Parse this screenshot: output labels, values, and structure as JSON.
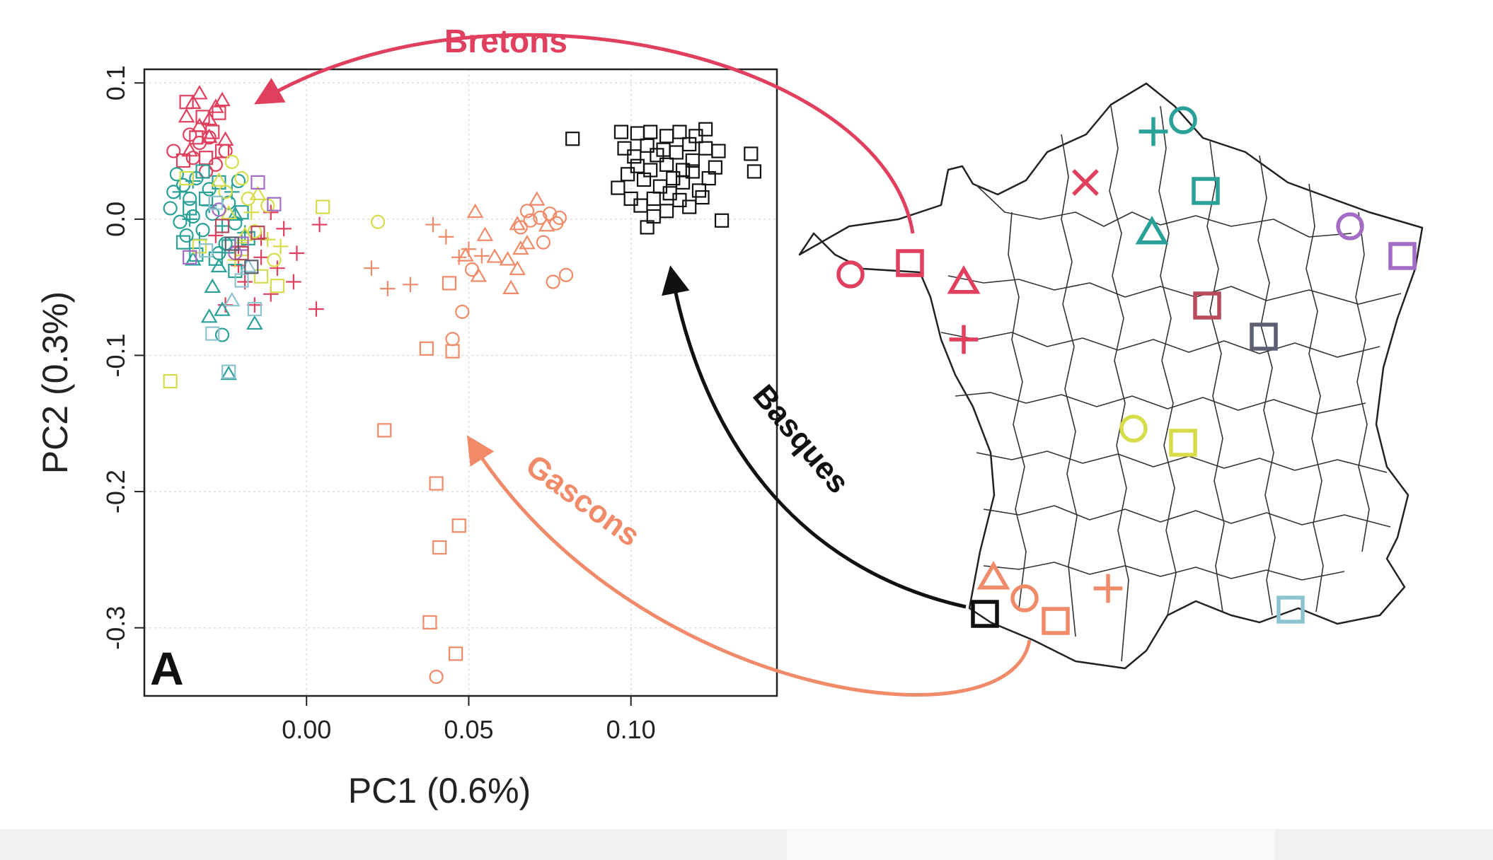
{
  "colors": {
    "red": "#e0405e",
    "teal": "#2aa198",
    "yellow": "#d7dc4a",
    "purple": "#a26cc4",
    "orange": "#f08a68",
    "black": "#111111",
    "maroon": "#b84a5c",
    "slate": "#5a6070",
    "lightblue": "#8cc3cf"
  },
  "chart_data": {
    "type": "scatter",
    "panel_label": "A",
    "xlabel": "PC1 (0.6%)",
    "ylabel": "PC2 (0.3%)",
    "xlim": [
      -0.05,
      0.145
    ],
    "ylim": [
      -0.35,
      0.11
    ],
    "x_ticks": [
      0.0,
      0.05,
      0.1
    ],
    "x_tick_labels": [
      "0.00",
      "0.05",
      "0.10"
    ],
    "y_ticks": [
      0.1,
      0.0,
      -0.1,
      -0.2,
      -0.3
    ],
    "y_tick_labels": [
      "0.1",
      "0.0",
      "-0.1",
      "-0.2",
      "-0.3"
    ],
    "grid": true,
    "annotations": [
      "Bretons",
      "Basques",
      "Gascons"
    ],
    "series": [
      {
        "group": "basque-cluster",
        "color": "black",
        "marker": "square",
        "points": [
          [
            0.082,
            0.059
          ],
          [
            0.097,
            0.064
          ],
          [
            0.102,
            0.063
          ],
          [
            0.106,
            0.064
          ],
          [
            0.111,
            0.061
          ],
          [
            0.115,
            0.064
          ],
          [
            0.12,
            0.061
          ],
          [
            0.123,
            0.066
          ],
          [
            0.098,
            0.052
          ],
          [
            0.101,
            0.046
          ],
          [
            0.105,
            0.054
          ],
          [
            0.11,
            0.051
          ],
          [
            0.114,
            0.049
          ],
          [
            0.118,
            0.055
          ],
          [
            0.123,
            0.052
          ],
          [
            0.127,
            0.05
          ],
          [
            0.137,
            0.048
          ],
          [
            0.138,
            0.035
          ],
          [
            0.096,
            0.023
          ],
          [
            0.099,
            0.033
          ],
          [
            0.102,
            0.039
          ],
          [
            0.104,
            0.029
          ],
          [
            0.106,
            0.036
          ],
          [
            0.109,
            0.024
          ],
          [
            0.111,
            0.04
          ],
          [
            0.113,
            0.03
          ],
          [
            0.116,
            0.027
          ],
          [
            0.119,
            0.035
          ],
          [
            0.121,
            0.021
          ],
          [
            0.124,
            0.03
          ],
          [
            0.126,
            0.038
          ],
          [
            0.1,
            0.015
          ],
          [
            0.103,
            0.01
          ],
          [
            0.107,
            0.015
          ],
          [
            0.111,
            0.006
          ],
          [
            0.115,
            0.014
          ],
          [
            0.118,
            0.009
          ],
          [
            0.122,
            0.016
          ],
          [
            0.128,
            -0.001
          ],
          [
            0.107,
            0.002
          ],
          [
            0.112,
            0.019
          ],
          [
            0.119,
            0.043
          ],
          [
            0.105,
            -0.006
          ],
          [
            0.116,
            0.036
          ],
          [
            0.108,
            0.047
          ]
        ]
      },
      {
        "group": "gascon-cluster",
        "color": "orange",
        "marker": "triangle",
        "points": [
          [
            0.052,
            0.005
          ],
          [
            0.055,
            -0.012
          ],
          [
            0.058,
            -0.028
          ],
          [
            0.062,
            -0.03
          ],
          [
            0.066,
            -0.022
          ],
          [
            0.068,
            -0.018
          ],
          [
            0.071,
            0.014
          ],
          [
            0.053,
            -0.042
          ],
          [
            0.063,
            -0.051
          ],
          [
            0.065,
            -0.037
          ],
          [
            0.074,
            -0.005
          ],
          [
            0.065,
            -0.004
          ],
          [
            0.049,
            -0.027
          ]
        ]
      },
      {
        "group": "gascon-cluster",
        "color": "orange",
        "marker": "circle",
        "points": [
          [
            0.066,
            -0.006
          ],
          [
            0.068,
            0.006
          ],
          [
            0.069,
            -0.001
          ],
          [
            0.072,
            0.001
          ],
          [
            0.073,
            -0.017
          ],
          [
            0.075,
            0.004
          ],
          [
            0.077,
            -0.003
          ],
          [
            0.078,
            0.001
          ],
          [
            0.076,
            -0.046
          ],
          [
            0.08,
            -0.041
          ],
          [
            0.051,
            -0.037
          ],
          [
            0.048,
            -0.068
          ],
          [
            0.045,
            -0.088
          ],
          [
            0.04,
            -0.336
          ]
        ]
      },
      {
        "group": "gascon-cluster",
        "color": "orange",
        "marker": "plus",
        "points": [
          [
            0.02,
            -0.036
          ],
          [
            0.025,
            -0.051
          ],
          [
            0.039,
            -0.004
          ],
          [
            0.047,
            -0.028
          ],
          [
            0.05,
            -0.022
          ],
          [
            0.054,
            -0.027
          ],
          [
            0.032,
            -0.048
          ],
          [
            0.043,
            -0.013
          ]
        ]
      },
      {
        "group": "gascon-cluster",
        "color": "orange",
        "marker": "square",
        "points": [
          [
            0.037,
            -0.095
          ],
          [
            0.044,
            -0.047
          ],
          [
            0.045,
            -0.097
          ],
          [
            0.024,
            -0.155
          ],
          [
            0.04,
            -0.194
          ],
          [
            0.047,
            -0.225
          ],
          [
            0.041,
            -0.241
          ],
          [
            0.038,
            -0.296
          ],
          [
            0.046,
            -0.319
          ]
        ]
      },
      {
        "group": "northern-cluster",
        "color": "red",
        "marker": "triangle",
        "points": [
          [
            -0.033,
            0.092
          ],
          [
            -0.028,
            0.082
          ],
          [
            -0.035,
            0.085
          ],
          [
            -0.03,
            0.073
          ],
          [
            -0.026,
            0.087
          ],
          [
            -0.037,
            0.075
          ],
          [
            -0.033,
            0.068
          ],
          [
            -0.025,
            0.058
          ],
          [
            -0.03,
            0.06
          ],
          [
            -0.036,
            0.05
          ]
        ]
      },
      {
        "group": "northern-cluster",
        "color": "red",
        "marker": "square",
        "points": [
          [
            -0.037,
            0.086
          ],
          [
            -0.027,
            0.078
          ],
          [
            -0.032,
            0.075
          ],
          [
            -0.029,
            0.064
          ],
          [
            -0.034,
            0.06
          ],
          [
            -0.026,
            0.05
          ],
          [
            -0.031,
            0.045
          ],
          [
            -0.038,
            0.043
          ]
        ]
      },
      {
        "group": "northern-cluster",
        "color": "red",
        "marker": "circle",
        "points": [
          [
            -0.041,
            0.05
          ],
          [
            -0.036,
            0.062
          ],
          [
            -0.033,
            0.056
          ],
          [
            -0.028,
            0.04
          ],
          [
            -0.031,
            0.035
          ],
          [
            -0.025,
            0.05
          ],
          [
            -0.03,
            0.06
          ],
          [
            -0.035,
            0.045
          ]
        ]
      },
      {
        "group": "northern-cluster",
        "color": "red",
        "marker": "plus",
        "points": [
          [
            -0.028,
            -0.012
          ],
          [
            -0.021,
            -0.02
          ],
          [
            -0.014,
            -0.014
          ],
          [
            -0.011,
            0.005
          ],
          [
            -0.007,
            -0.007
          ],
          [
            -0.019,
            -0.046
          ],
          [
            -0.016,
            -0.063
          ],
          [
            -0.011,
            -0.055
          ],
          [
            -0.004,
            -0.046
          ],
          [
            -0.003,
            -0.025
          ],
          [
            0.004,
            -0.004
          ],
          [
            0.003,
            -0.066
          ],
          [
            -0.025,
            -0.063
          ],
          [
            -0.009,
            -0.036
          ],
          [
            -0.021,
            -0.034
          ],
          [
            -0.014,
            -0.028
          ]
        ]
      },
      {
        "group": "northern-cluster",
        "color": "teal",
        "marker": "circle",
        "points": [
          [
            -0.042,
            0.008
          ],
          [
            -0.04,
            0.033
          ],
          [
            -0.041,
            0.02
          ],
          [
            -0.039,
            -0.002
          ],
          [
            -0.037,
            -0.012
          ],
          [
            -0.036,
            0.015
          ],
          [
            -0.034,
            0.03
          ],
          [
            -0.032,
            -0.008
          ],
          [
            -0.03,
            0.022
          ],
          [
            -0.029,
            0.004
          ],
          [
            -0.027,
            -0.025
          ],
          [
            -0.025,
            -0.018
          ],
          [
            -0.024,
            0.012
          ],
          [
            -0.022,
            -0.003
          ],
          [
            -0.026,
            -0.085
          ],
          [
            -0.021,
            0.028
          ],
          [
            -0.035,
            0.002
          ],
          [
            -0.038,
            0.025
          ]
        ]
      },
      {
        "group": "northern-cluster",
        "color": "teal",
        "marker": "square",
        "points": [
          [
            -0.038,
            -0.017
          ],
          [
            -0.034,
            -0.026
          ],
          [
            -0.031,
            0.015
          ],
          [
            -0.028,
            -0.029
          ],
          [
            -0.024,
            -0.02
          ],
          [
            -0.02,
            0.005
          ],
          [
            -0.018,
            -0.014
          ],
          [
            -0.032,
            0.035
          ],
          [
            -0.027,
            0.027
          ],
          [
            -0.022,
            -0.038
          ],
          [
            -0.036,
            0.008
          ]
        ]
      },
      {
        "group": "northern-cluster",
        "color": "teal",
        "marker": "triangle",
        "points": [
          [
            -0.029,
            -0.05
          ],
          [
            -0.026,
            -0.067
          ],
          [
            -0.03,
            -0.072
          ],
          [
            -0.024,
            -0.114
          ],
          [
            -0.016,
            -0.077
          ],
          [
            -0.027,
            -0.035
          ],
          [
            -0.022,
            0.003
          ],
          [
            -0.035,
            -0.03
          ]
        ]
      },
      {
        "group": "northern-cluster",
        "color": "teal",
        "marker": "plus",
        "points": [
          [
            -0.039,
            0.02
          ],
          [
            -0.036,
            0.0
          ],
          [
            -0.033,
            -0.015
          ],
          [
            -0.03,
            0.01
          ],
          [
            -0.026,
            -0.005
          ],
          [
            -0.023,
            0.02
          ],
          [
            -0.019,
            -0.01
          ],
          [
            -0.035,
            0.028
          ]
        ]
      },
      {
        "group": "northern-cluster",
        "color": "yellow",
        "marker": "circle",
        "points": [
          [
            -0.023,
            0.042
          ],
          [
            -0.02,
            0.03
          ],
          [
            -0.018,
            0.015
          ],
          [
            -0.016,
            -0.009
          ],
          [
            -0.012,
            0.01
          ],
          [
            -0.01,
            -0.03
          ],
          [
            0.022,
            -0.002
          ],
          [
            -0.025,
            0.02
          ]
        ]
      },
      {
        "group": "northern-cluster",
        "color": "yellow",
        "marker": "square",
        "points": [
          [
            -0.042,
            -0.119
          ],
          [
            0.005,
            0.009
          ],
          [
            -0.009,
            -0.049
          ],
          [
            -0.014,
            -0.042
          ],
          [
            -0.02,
            -0.022
          ],
          [
            -0.033,
            -0.02
          ],
          [
            -0.037,
            0.03
          ]
        ]
      },
      {
        "group": "northern-cluster",
        "color": "yellow",
        "marker": "triangle",
        "points": [
          [
            -0.027,
            0.028
          ],
          [
            -0.024,
            0.004
          ],
          [
            -0.019,
            -0.012
          ],
          [
            -0.015,
            0.018
          ]
        ]
      },
      {
        "group": "northern-cluster",
        "color": "yellow",
        "marker": "plus",
        "points": [
          [
            -0.017,
            0.005
          ],
          [
            -0.012,
            -0.015
          ],
          [
            -0.008,
            -0.02
          ],
          [
            -0.022,
            -0.03
          ]
        ]
      },
      {
        "group": "northern-cluster",
        "color": "purple",
        "marker": "square",
        "points": [
          [
            -0.015,
            0.027
          ],
          [
            -0.01,
            0.011
          ],
          [
            -0.036,
            -0.028
          ],
          [
            -0.02,
            -0.018
          ]
        ]
      },
      {
        "group": "northern-cluster",
        "color": "purple",
        "marker": "circle",
        "points": [
          [
            -0.027,
            0.007
          ],
          [
            -0.022,
            -0.025
          ]
        ]
      },
      {
        "group": "northern-cluster",
        "color": "lightblue",
        "marker": "square",
        "points": [
          [
            -0.029,
            -0.084
          ],
          [
            -0.024,
            -0.112
          ],
          [
            -0.016,
            -0.066
          ],
          [
            -0.028,
            0.012
          ],
          [
            -0.031,
            -0.023
          ],
          [
            -0.02,
            -0.045
          ]
        ]
      },
      {
        "group": "northern-cluster",
        "color": "lightblue",
        "marker": "triangle",
        "points": [
          [
            -0.023,
            -0.06
          ],
          [
            -0.018,
            -0.035
          ]
        ]
      },
      {
        "group": "northern-cluster",
        "color": "maroon",
        "marker": "square",
        "points": [
          [
            -0.026,
            -0.005
          ],
          [
            -0.02,
            -0.025
          ],
          [
            -0.015,
            -0.01
          ]
        ]
      },
      {
        "group": "northern-cluster",
        "color": "slate",
        "marker": "square",
        "points": [
          [
            -0.023,
            -0.018
          ],
          [
            -0.017,
            -0.035
          ]
        ]
      }
    ]
  },
  "map": {
    "markers": [
      {
        "name": "cross",
        "color": "red",
        "marker": "cross"
      },
      {
        "name": "plus-top",
        "color": "teal",
        "marker": "plus"
      },
      {
        "name": "circle-top",
        "color": "teal",
        "marker": "circle"
      },
      {
        "name": "square-north",
        "color": "teal",
        "marker": "square"
      },
      {
        "name": "triangle-paris",
        "color": "teal",
        "marker": "triangle"
      },
      {
        "name": "circle-east",
        "color": "purple",
        "marker": "circle"
      },
      {
        "name": "square-east",
        "color": "purple",
        "marker": "square"
      },
      {
        "name": "circle-brittany",
        "color": "red",
        "marker": "circle"
      },
      {
        "name": "square-brittany",
        "color": "red",
        "marker": "square"
      },
      {
        "name": "triangle-west",
        "color": "red",
        "marker": "triangle"
      },
      {
        "name": "plus-west",
        "color": "red",
        "marker": "plus"
      },
      {
        "name": "square-center-north",
        "color": "maroon",
        "marker": "square"
      },
      {
        "name": "square-center-east",
        "color": "slate",
        "marker": "square"
      },
      {
        "name": "circle-center",
        "color": "yellow",
        "marker": "circle"
      },
      {
        "name": "square-center",
        "color": "yellow",
        "marker": "square"
      },
      {
        "name": "triangle-southwest",
        "color": "orange",
        "marker": "triangle"
      },
      {
        "name": "circle-southwest",
        "color": "orange",
        "marker": "circle"
      },
      {
        "name": "plus-south",
        "color": "orange",
        "marker": "plus"
      },
      {
        "name": "square-southwest",
        "color": "orange",
        "marker": "square"
      },
      {
        "name": "square-basque",
        "color": "black",
        "marker": "square"
      },
      {
        "name": "square-southeast",
        "color": "lightblue",
        "marker": "square"
      }
    ]
  }
}
